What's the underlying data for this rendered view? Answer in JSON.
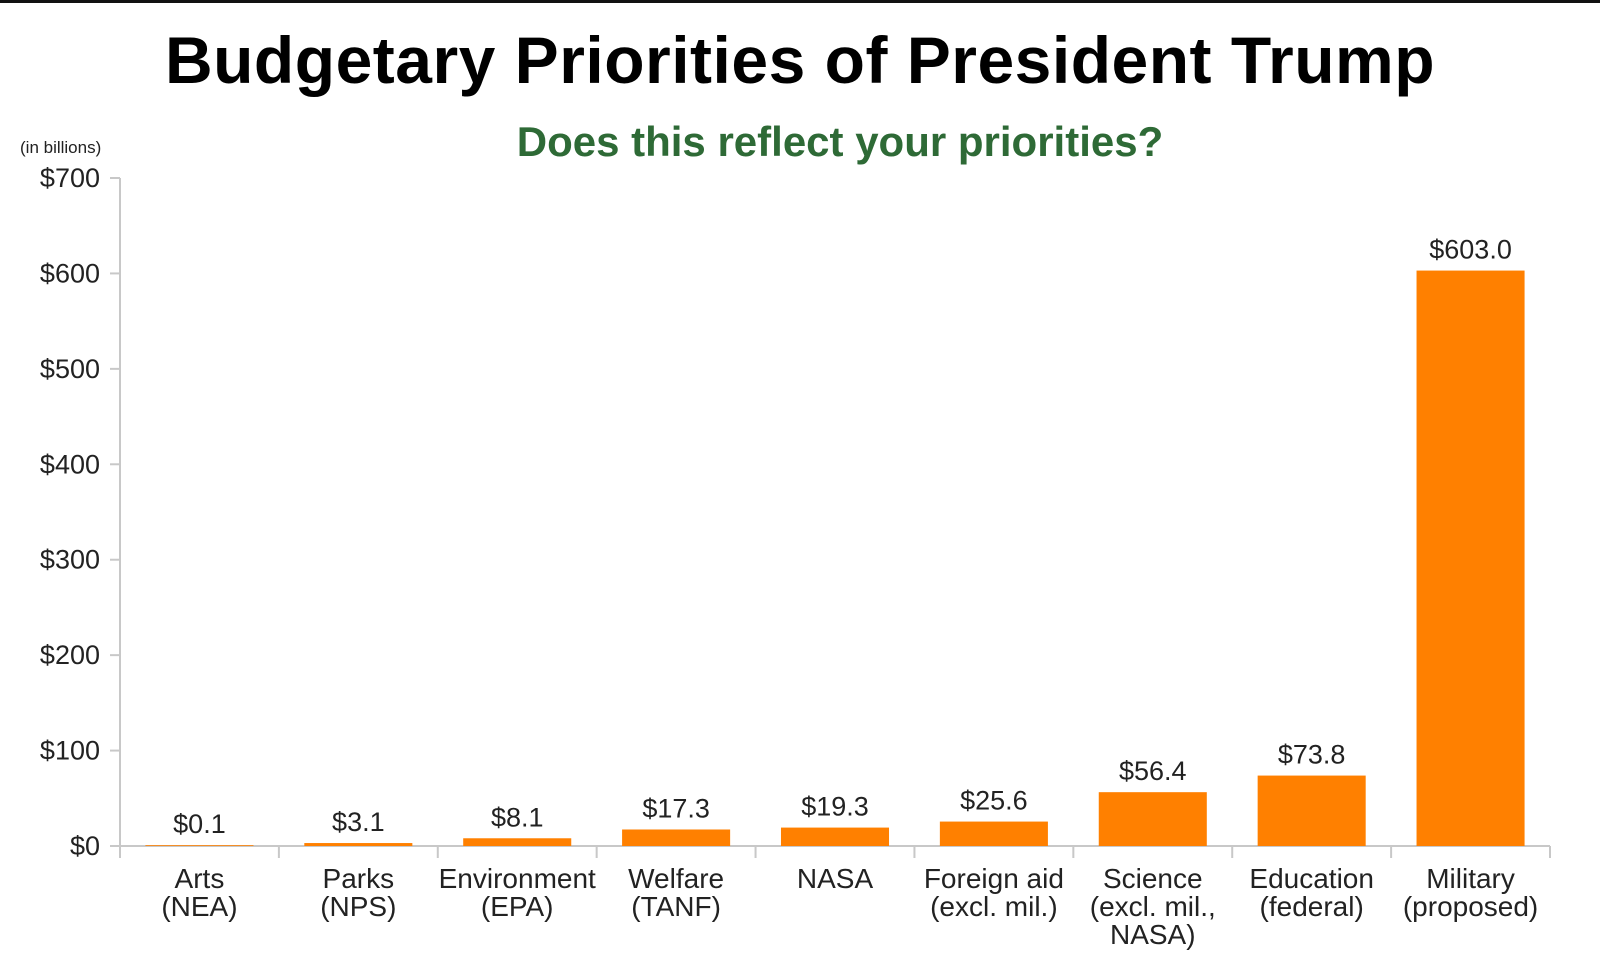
{
  "colors": {
    "bar": "#ff8000",
    "subtitle": "#2e6a36",
    "axis": "#c8c8c8",
    "text": "#222222"
  },
  "chart_data": {
    "type": "bar",
    "title": "Budgetary Priorities of President Trump",
    "subtitle": "Does this reflect your priorities?",
    "unit_note": "(in billions)",
    "categories": [
      [
        "Arts",
        "(NEA)"
      ],
      [
        "Parks",
        "(NPS)"
      ],
      [
        "Environment",
        "(EPA)"
      ],
      [
        "Welfare",
        "(TANF)"
      ],
      [
        "NASA"
      ],
      [
        "Foreign aid",
        "(excl. mil.)"
      ],
      [
        "Science",
        "(excl. mil.,",
        "NASA)"
      ],
      [
        "Education",
        "(federal)"
      ],
      [
        "Military",
        "(proposed)"
      ]
    ],
    "values": [
      0.1,
      3.1,
      8.1,
      17.3,
      19.3,
      25.6,
      56.4,
      73.8,
      603.0
    ],
    "value_labels": [
      "$0.1",
      "$3.1",
      "$8.1",
      "$17.3",
      "$19.3",
      "$25.6",
      "$56.4",
      "$73.8",
      "$603.0"
    ],
    "yticks": [
      0,
      100,
      200,
      300,
      400,
      500,
      600,
      700
    ],
    "ytick_labels": [
      "$0",
      "$100",
      "$200",
      "$300",
      "$400",
      "$500",
      "$600",
      "$700"
    ],
    "ylim": [
      0,
      700
    ],
    "grid": false,
    "legend": "none"
  }
}
